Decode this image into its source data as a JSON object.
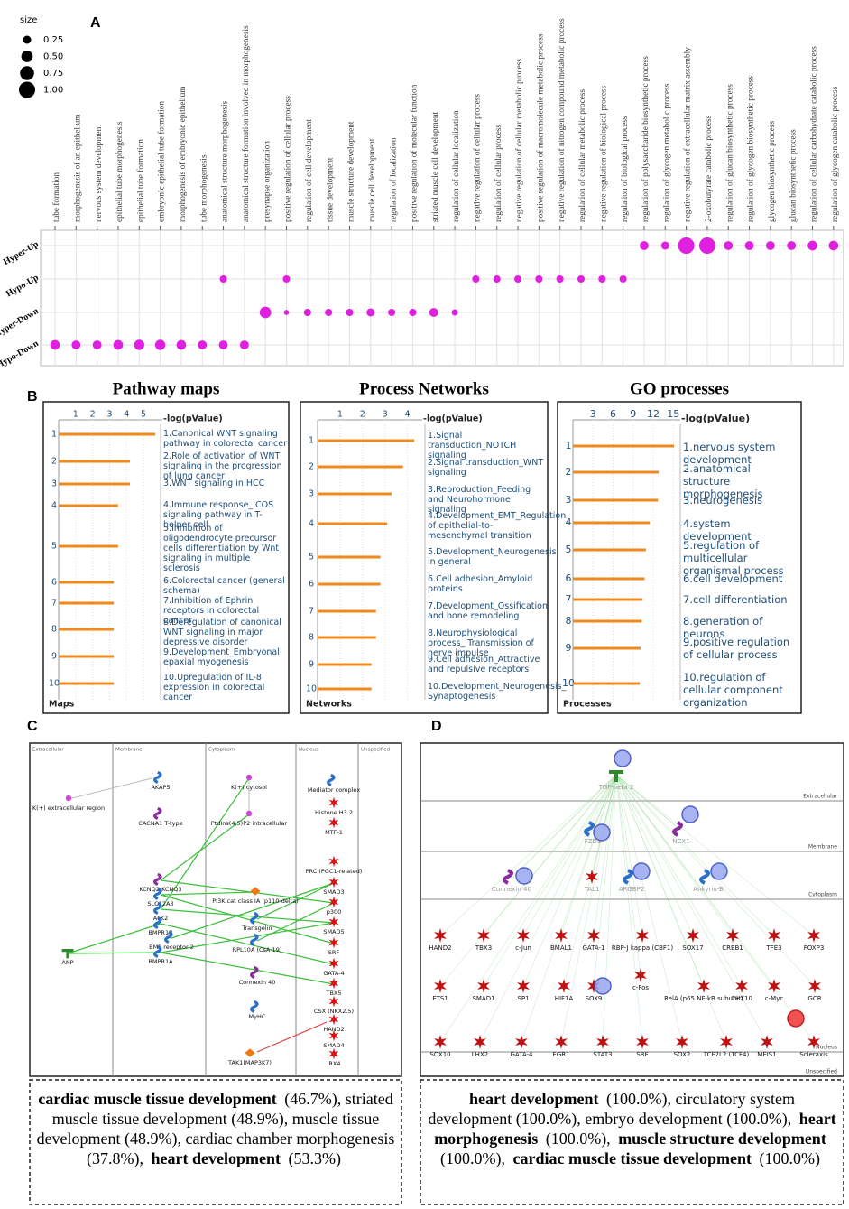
{
  "panel_labels": [
    "A",
    "B",
    "C",
    "D"
  ],
  "chart_data": [
    {
      "type": "dot",
      "categories": [
        "tube formation",
        "morphogenesis of an epithelium",
        "nervous system development",
        "epithelial tube morphogenesis",
        "epithelial tube formation",
        "embryonic epithelial tube formation",
        "morphogenesis of embryonic epithelium",
        "tube morphogenesis",
        "anatomical structure morphogenesis",
        "anatomical structure formation involved in morphogenesis",
        "presynapse organization",
        "positive regulation of cellular process",
        "regulation of cell development",
        "tissue development",
        "muscle structure development",
        "muscle cell development",
        "regulation of localization",
        "positive regulation of molecular function",
        "striated muscle cell development",
        "regulation of cellular localization",
        "negative regulation of cellular process",
        "regulation of cellular process",
        "negative regulation of cellular metabolic process",
        "positive regulation of macromolecule metabolic process",
        "negative regulation of nitrogen compound metabolic process",
        "regulation of cellular metabolic process",
        "negative regulation of biological process",
        "regulation of biological process",
        "regulation of polysaccharide biosynthetic process",
        "regulation of glycogen metabolic process",
        "negative regulation of extracellular matrix assembly",
        "2-oxobutyrate catabolic process",
        "regulation of glucan biosynthetic process",
        "regulation of glycogen biosynthetic process",
        "glycogen biosynthetic process",
        "glucan biosynthetic process",
        "regulation of cellular carbohydrate catabolic process",
        "regulation of glycogen catabolic process"
      ],
      "series": [
        {
          "name": "Hyper-Up",
          "color": "#e020e0",
          "values": [
            null,
            null,
            null,
            null,
            null,
            null,
            null,
            null,
            null,
            null,
            null,
            null,
            null,
            null,
            null,
            null,
            null,
            null,
            null,
            null,
            null,
            null,
            null,
            null,
            null,
            null,
            null,
            null,
            0.3,
            0.25,
            1.0,
            1.0,
            0.3,
            0.3,
            0.3,
            0.3,
            0.35,
            0.35
          ]
        },
        {
          "name": "Hypo-Up",
          "color": "#e020e0",
          "values": [
            null,
            null,
            null,
            null,
            null,
            null,
            null,
            null,
            0.2,
            null,
            null,
            0.2,
            null,
            null,
            null,
            null,
            null,
            null,
            null,
            null,
            0.2,
            0.2,
            0.2,
            0.2,
            0.2,
            0.2,
            0.2,
            0.2,
            null,
            null,
            null,
            null,
            null,
            null,
            null,
            null,
            null,
            null
          ]
        },
        {
          "name": "Hyper-Down",
          "color": "#e020e0",
          "values": [
            null,
            null,
            null,
            null,
            null,
            null,
            null,
            null,
            null,
            null,
            0.5,
            0.1,
            0.2,
            0.2,
            0.2,
            0.25,
            0.2,
            0.2,
            0.3,
            0.15,
            null,
            null,
            null,
            null,
            null,
            null,
            null,
            null,
            null,
            null,
            null,
            null,
            null,
            null,
            null,
            null,
            null,
            null
          ]
        },
        {
          "name": "Hypo-Down",
          "color": "#e020e0",
          "values": [
            0.35,
            0.3,
            0.3,
            0.35,
            0.4,
            0.4,
            0.35,
            0.3,
            0.3,
            0.3,
            null,
            null,
            null,
            null,
            null,
            null,
            null,
            null,
            null,
            null,
            null,
            null,
            null,
            null,
            null,
            null,
            null,
            null,
            null,
            null,
            null,
            null,
            null,
            null,
            null,
            null,
            null,
            null
          ]
        }
      ],
      "size_legend": {
        "title": "size",
        "values": [
          0.25,
          {
            "value": 0.5,
            "label": "0.50"
          },
          0.75,
          {
            "value": 1,
            "label": "1.00"
          }
        ]
      },
      "grid": true
    },
    {
      "type": "bar",
      "orientation": "horizontal",
      "title": "Pathway maps",
      "xlabel": "-log(pValue)",
      "ylabel": "Maps",
      "color": "#f08a1c",
      "categories": [
        "1",
        "2",
        "3",
        "4",
        "5",
        "6",
        "7",
        "8",
        "9",
        "10"
      ],
      "labels": [
        "1.Canonical WNT signaling pathway in colorectal cancer",
        "2.Role of activation of WNT signaling in the progression of lung cancer",
        "3.WNT signaling in HCC",
        "4.Immune response_ICOS signaling pathway in T-helper cell",
        "5.Inhibition of oligodendrocyte precursor cells differentiation by Wnt signaling in multiple sclerosis",
        "6.Colorectal cancer (general schema)",
        "7.Inhibition of Ephrin receptors in colorectal cancer",
        "8.Deregulation of canonical WNT signaling in major depressive disorder",
        "9.Development_Embryonal epaxial myogenesis",
        "10.Upregulation of IL-8 expression in colorectal cancer"
      ],
      "values": [
        5.7,
        4.2,
        4.2,
        3.5,
        3.5,
        3.25,
        3.25,
        3.25,
        3.25,
        3.25
      ],
      "xlim": [
        0,
        5.9
      ],
      "xticks": [
        1,
        2,
        3,
        4,
        5
      ],
      "grid": true
    },
    {
      "type": "bar",
      "orientation": "horizontal",
      "title": "Process Networks",
      "xlabel": "-log(pValue)",
      "ylabel": "Networks",
      "color": "#f08a1c",
      "categories": [
        "1",
        "2",
        "3",
        "4",
        "5",
        "6",
        "7",
        "8",
        "9",
        "10"
      ],
      "labels": [
        "1.Signal transduction_NOTCH signaling",
        "2.Signal transduction_WNT signaling",
        "3.Reproduction_Feeding and Neurohormone signaling",
        "4.Development_EMT_Regulation of epithelial-to-mesenchymal transition",
        "5.Development_Neurogenesis in general",
        "6.Cell adhesion_Amyloid proteins",
        "7.Development_Ossification and bone remodeling",
        "8.Neurophysiological process_ Transmission of nerve impulse",
        "9.Cell adhesion_Attractive and repulsive receptors",
        "10.Development_Neurogenesis_ Synaptogenesis"
      ],
      "values": [
        4.3,
        3.8,
        3.3,
        3.1,
        2.8,
        2.8,
        2.6,
        2.6,
        2.4,
        2.4
      ],
      "xlim": [
        0,
        4.5
      ],
      "xticks": [
        1,
        2,
        3,
        4
      ],
      "grid": true
    },
    {
      "type": "bar",
      "orientation": "horizontal",
      "title": "GO processes",
      "xlabel": "-log(pValue)",
      "ylabel": "Processes",
      "color": "#f08a1c",
      "categories": [
        "1",
        "2",
        "3",
        "4",
        "5",
        "6",
        "7",
        "8",
        "9",
        "10"
      ],
      "labels": [
        "1.nervous system development",
        "2.anatomical structure morphogenesis",
        "3.neurogenesis",
        "4.system development",
        "5.regulation of multicellular organismal process",
        "6.cell development",
        "7.cell differentiation",
        "8.generation of neurons",
        "9.positive regulation of cellular process",
        "10.regulation of cellular component organization"
      ],
      "values": [
        15.1,
        12.8,
        12.7,
        11.5,
        10.9,
        10.7,
        10.4,
        10.3,
        10.1,
        10.0
      ],
      "xlim": [
        0,
        15.5
      ],
      "xticks": [
        3,
        6,
        9,
        12,
        15
      ],
      "grid": true
    }
  ],
  "diagrams": [
    {
      "compartments": [
        "Extracellular",
        "Membrane",
        "Cytoplasm",
        "Nucleus",
        "Unspecified"
      ],
      "nodes": [
        "K(+) extracellular region",
        "AKAP5",
        "CACNA1 T-type",
        "K(+) cytosol",
        "PtdIns(4,5)P2 intracellular",
        "PI3K cat class IA (p110-delta)",
        "Transgelin",
        "RPL10A (CsA-19)",
        "Connexin 40",
        "MyHC",
        "TAK1(MAP3K7)",
        "KCNQ2/KCNQ3",
        "SLC12A3",
        "ALK2",
        "BMPR1B",
        "BMP receptor 2",
        "BMPR1A",
        "ANP",
        "Mediator complex",
        "Histone H3.2",
        "MTF-1",
        "PRC (PGC1-related)",
        "SMAD3",
        "p300",
        "SMAD5",
        "SRF",
        "GATA-4",
        "TBX5",
        "CSX (NKX2.5)",
        "HAND2",
        "SMAD4",
        "IRX4"
      ],
      "caption": [
        {
          "text": "cardiac muscle tissue development",
          "bold": true
        },
        {
          "text": "(46.7%), striated muscle tissue development (48.9%), muscle tissue development (48.9%), cardiac chamber morphogenesis (37.8%),",
          "bold": false
        },
        {
          "text": "heart development",
          "bold": true
        },
        {
          "text": "(53.3%)",
          "bold": false
        }
      ]
    },
    {
      "compartments": [
        "Extracellular",
        "Membrane",
        "Cytoplasm",
        "Nucleus",
        "Unspecified"
      ],
      "nodes": [
        "TGF-beta 2",
        "FZD1",
        "NCX1",
        "Connexin 40",
        "TAL1",
        "ARGBP2",
        "Ankyrin-B",
        "HAND2",
        "TBX3",
        "c-Jun",
        "BMAL1",
        "GATA-1",
        "RBP-J kappa (CBF1)",
        "SOX17",
        "CREB1",
        "TFE3",
        "FOXP3",
        "ETS1",
        "SMAD1",
        "SP1",
        "HIF1A",
        "SOX9",
        "c-Fos",
        "RelA (p65 NF-kB subunit)",
        "CHX10",
        "c-Myc",
        "GCR",
        "SOX10",
        "LHX2",
        "GATA-4",
        "EGR1",
        "STAT3",
        "SRF",
        "SOX2",
        "TCF7L2 (TCF4)",
        "MEIS1",
        "Scleraxis"
      ],
      "caption": [
        {
          "text": "heart development",
          "bold": true
        },
        {
          "text": "(100.0%), circulatory system development (100.0%), embryo development (100.0%),",
          "bold": false
        },
        {
          "text": "heart morphogenesis",
          "bold": true
        },
        {
          "text": "(100.0%),",
          "bold": false
        },
        {
          "text": "muscle structure development",
          "bold": true
        },
        {
          "text": "(100.0%),",
          "bold": false
        },
        {
          "text": "cardiac muscle tissue development",
          "bold": true
        },
        {
          "text": "(100.0%)",
          "bold": false
        }
      ]
    }
  ]
}
